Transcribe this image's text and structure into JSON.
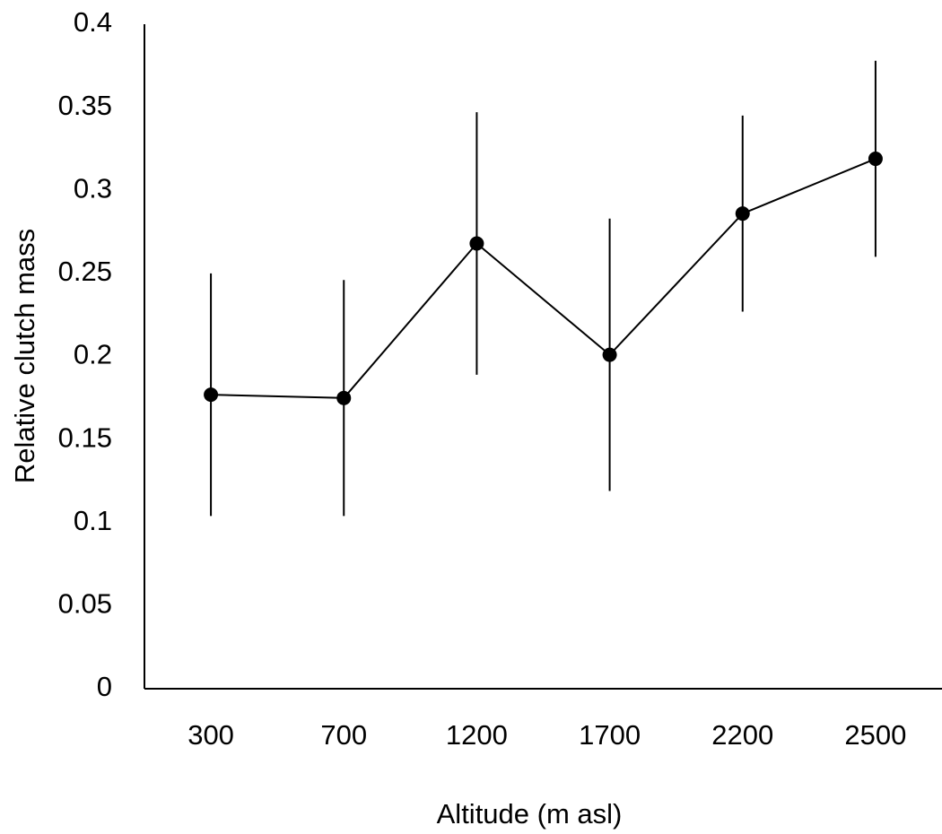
{
  "chart_data": {
    "type": "line",
    "x_label": "Altitude (m asl)",
    "y_label": "Relative clutch mass",
    "categories": [
      "300",
      "700",
      "1200",
      "1700",
      "2200",
      "2500"
    ],
    "series": [
      {
        "color": "#000000",
        "values": [
          0.177,
          0.175,
          0.268,
          0.201,
          0.286,
          0.319
        ],
        "errors": [
          0.073,
          0.071,
          0.079,
          0.082,
          0.059,
          0.059
        ]
      }
    ],
    "ylim": [
      0,
      0.4
    ],
    "yticks": [
      0,
      0.05,
      0.1,
      0.15,
      0.2,
      0.25,
      0.3,
      0.35,
      0.4
    ],
    "grid": false
  }
}
